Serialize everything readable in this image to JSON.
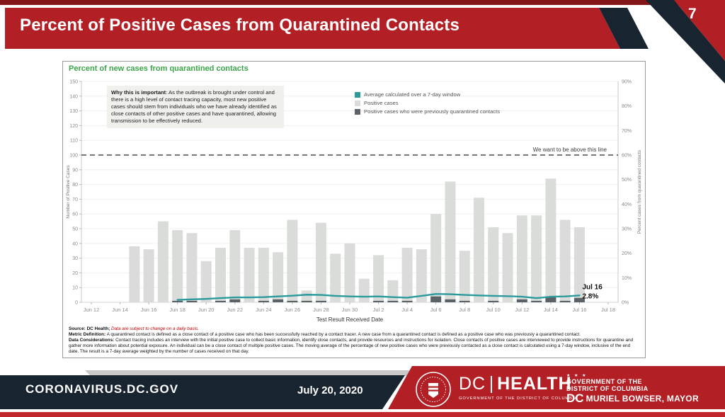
{
  "slide": {
    "title": "Percent of Positive Cases from Quarantined Contacts",
    "page_number": "7"
  },
  "chart": {
    "title": "Percent of new cases from quarantined contacts",
    "why_box": {
      "label": "Why this is important",
      "text": ": As the outbreak is brought under control and there is a high level of contact tracing capacity, most new positive cases should stem from individuals who we have already identified as close contacts of other positive cases and have quarantined, allowing transmission to be effectively reduced."
    },
    "footnotes": {
      "source_label": "Source: DC Health;",
      "source_note": "Data are subject to change on a daily basis.",
      "metric_label": "Metric Definition:",
      "metric_text": "A quarantined contact is defined as a close contact of a positive case who has been successfully reached by a contact tracer. A new case from a quarantined contact is defined as a positive case who was previously a quarantined contact.",
      "considerations_label": "Data Considerations:",
      "considerations_text": "Contact tracing includes an interview with the initial positive case to collect basic information, identify close contacts, and provide resources and instructions for isolation. Close contacts of positive cases are interviewed to provide instructions for quarantine and gather more information about potential exposure. An individual can be a close contact of multiple positive cases. The moving average of the percentage of new positive cases who were previously contacted as a close contact is calculated using a 7-day window, inclusive of the end date. The result is a 7-day average weighted by the number of cases received on that day."
    }
  },
  "chart_data": {
    "type": "bar+line",
    "x_label": "Test Result Received Date",
    "x_ticks": [
      "Jun 12",
      "Jun 14",
      "Jun 16",
      "Jun 18",
      "Jun 20",
      "Jun 22",
      "Jun 24",
      "Jun 26",
      "Jun 28",
      "Jun 30",
      "Jul 2",
      "Jul 4",
      "Jul 6",
      "Jul 8",
      "Jul 10",
      "Jul 12",
      "Jul 14",
      "Jul 16",
      "Jul 18"
    ],
    "left_axis": {
      "label": "Number of Positive Cases",
      "min": 0,
      "max": 150,
      "step": 10
    },
    "right_axis": {
      "label": "Percent cases from quarantined contacts",
      "min": 0,
      "max": 90,
      "step": 10,
      "unit": "%"
    },
    "bar_dates": [
      "Jun 15",
      "Jun 16",
      "Jun 17",
      "Jun 18",
      "Jun 19",
      "Jun 20",
      "Jun 21",
      "Jun 22",
      "Jun 23",
      "Jun 24",
      "Jun 25",
      "Jun 26",
      "Jun 27",
      "Jun 28",
      "Jun 29",
      "Jun 30",
      "Jul 1",
      "Jul 2",
      "Jul 3",
      "Jul 4",
      "Jul 5",
      "Jul 6",
      "Jul 7",
      "Jul 8",
      "Jul 9",
      "Jul 10",
      "Jul 11",
      "Jul 12",
      "Jul 13",
      "Jul 14",
      "Jul 15",
      "Jul 16"
    ],
    "bar_day_offset": 3,
    "positive_cases": [
      38,
      36,
      55,
      49,
      47,
      28,
      37,
      49,
      37,
      37,
      34,
      56,
      8,
      54,
      33,
      40,
      16,
      32,
      15,
      37,
      36,
      60,
      82,
      35,
      71,
      51,
      47,
      59,
      59,
      84,
      56,
      51
    ],
    "prev_quarantined": [
      0,
      0,
      0,
      1,
      1,
      0,
      1,
      2,
      0,
      1,
      2,
      1,
      1,
      1,
      0,
      0,
      0,
      1,
      1,
      1,
      0,
      4,
      2,
      1,
      0,
      1,
      0,
      2,
      1,
      4,
      1,
      3
    ],
    "line_day_offset": 6,
    "avg_pct": [
      1.0,
      1.2,
      1.4,
      1.7,
      2.0,
      2.0,
      2.1,
      2.4,
      2.7,
      3.1,
      3.0,
      2.6,
      2.4,
      2.3,
      2.4,
      2.1,
      1.9,
      2.6,
      3.4,
      3.3,
      3.0,
      2.8,
      2.6,
      2.5,
      2.3,
      1.7,
      2.3,
      2.4,
      2.8
    ],
    "goal_line": {
      "value_pct": 60,
      "label": "We want to be above this line"
    },
    "annotation": {
      "line1": "Jul 16",
      "line2": "2.8%"
    },
    "legend": [
      {
        "label": "Average calculated over a 7-day window",
        "color": "#2a9a9d"
      },
      {
        "label": "Positive cases",
        "color": "#d9dcd9"
      },
      {
        "label": "Positive cases who were previously quarantined contacts",
        "color": "#5a6268"
      }
    ],
    "colors": {
      "bar": "#d9dcd9",
      "bar_dark": "#5a6268",
      "line": "#2a9a9d",
      "goal": "#4a4a4a",
      "grid": "#f0f0f0",
      "axis_text": "#8a8a8a",
      "title_green": "#3aa648"
    }
  },
  "footer": {
    "url": "CORONAVIRUS.DC.GOV",
    "date": "July 20, 2020",
    "dc": "DC",
    "health": "HEALTH",
    "gov_line": "GOVERNMENT OF THE DISTRICT OF COLUMBIA",
    "right": {
      "stars": "★ ★ ★",
      "line1": "GOVERNMENT OF THE",
      "line2": "DISTRICT OF COLUMBIA",
      "flag": "DC",
      "line3": "MURIEL BOWSER, MAYOR"
    },
    "colors": {
      "navy": "#18242f",
      "red": "#b22026",
      "dark_red": "#841619",
      "strip_red": "#c1272d"
    }
  }
}
